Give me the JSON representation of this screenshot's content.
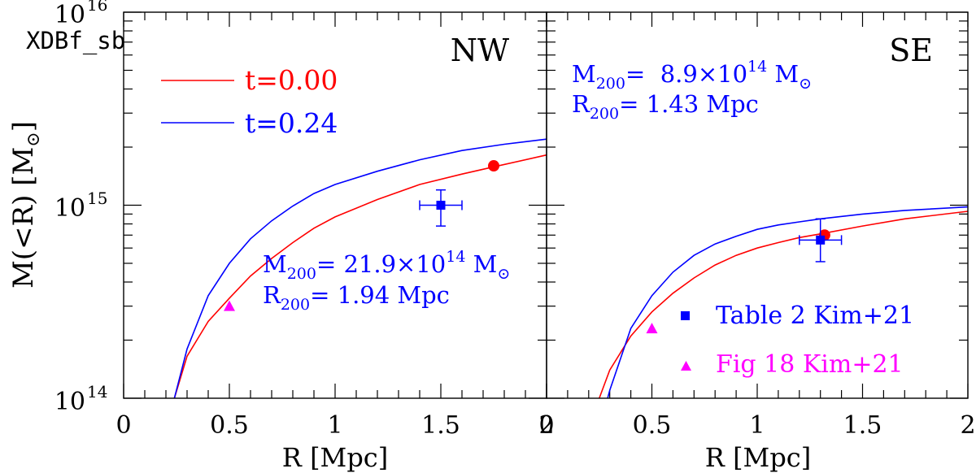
{
  "chart_data": {
    "type": "line",
    "ylabel_main": "M(<R) [M",
    "ylabel_sub": "⊙",
    "ylabel_close": "]",
    "xlabel": "R [Mpc]",
    "ylim": [
      100000000000000.0,
      1e+16
    ],
    "yscale": "log",
    "y_ticks": [
      {
        "base": "10",
        "exp": "16",
        "value": 1e+16
      },
      {
        "base": "10",
        "exp": "15",
        "value": 1000000000000000.0
      },
      {
        "base": "10",
        "exp": "14",
        "value": 100000000000000.0
      }
    ],
    "series_colors": {
      "t000": "#ff0000",
      "t024": "#0000ff",
      "table": "#0000ff",
      "fig": "#ff00ff"
    },
    "legend": {
      "model": "XDBf_sb",
      "t0_label": "t=0.00",
      "t1_label": "t=0.24",
      "table_label": "Table 2 Kim+21",
      "fig_label": "Fig 18 Kim+21"
    },
    "panels": [
      {
        "id": "NW",
        "title": "NW",
        "xlim": [
          0,
          2
        ],
        "x_ticks": [
          "0",
          "0.5",
          "1",
          "1.5",
          "2"
        ],
        "m200_prefix": "M",
        "m200_sub": "200",
        "m200_value": "= 21.9×10",
        "m200_exp": "14",
        "m200_unit": " M",
        "m200_unit_sub": "⊙",
        "r200_prefix": "R",
        "r200_sub": "200",
        "r200_value": "= 1.94 Mpc",
        "series": [
          {
            "name": "t=0.00",
            "key": "t000",
            "x": [
              0.24,
              0.3,
              0.4,
              0.5,
              0.6,
              0.7,
              0.8,
              0.9,
              1.0,
              1.2,
              1.4,
              1.6,
              1.75,
              2.0
            ],
            "y": [
              100000000000000.0,
              165000000000000.0,
              250000000000000.0,
              330000000000000.0,
              430000000000000.0,
              530000000000000.0,
              640000000000000.0,
              760000000000000.0,
              870000000000000.0,
              1070000000000000.0,
              1280000000000000.0,
              1450000000000000.0,
              1580000000000000.0,
              1820000000000000.0
            ]
          },
          {
            "name": "t=0.24",
            "key": "t024",
            "x": [
              0.24,
              0.3,
              0.4,
              0.5,
              0.6,
              0.7,
              0.8,
              0.9,
              1.0,
              1.2,
              1.4,
              1.6,
              1.8,
              2.0
            ],
            "y": [
              100000000000000.0,
              180000000000000.0,
              340000000000000.0,
              500000000000000.0,
              670000000000000.0,
              830000000000000.0,
              990000000000000.0,
              1150000000000000.0,
              1280000000000000.0,
              1500000000000000.0,
              1720000000000000.0,
              1920000000000000.0,
              2070000000000000.0,
              2200000000000000.0
            ]
          }
        ],
        "red_point": {
          "x": 1.75,
          "y": 1600000000000000.0
        },
        "table_point": {
          "x": 1.5,
          "y": 1000000000000000.0,
          "xerr": 0.1,
          "yerr_lo": 780000000000000.0,
          "yerr_hi": 1200000000000000.0
        },
        "fig_point": {
          "x": 0.5,
          "y": 300000000000000.0
        }
      },
      {
        "id": "SE",
        "title": "SE",
        "xlim": [
          0,
          2
        ],
        "x_ticks": [
          "0",
          "0.5",
          "1",
          "1.5",
          "2"
        ],
        "m200_prefix": "M",
        "m200_sub": "200",
        "m200_value": "=  8.9×10",
        "m200_exp": "14",
        "m200_unit": " M",
        "m200_unit_sub": "⊙",
        "r200_prefix": "R",
        "r200_sub": "200",
        "r200_value": "= 1.43 Mpc",
        "series": [
          {
            "name": "t=0.00",
            "key": "t000",
            "x": [
              0.25,
              0.3,
              0.4,
              0.5,
              0.6,
              0.7,
              0.8,
              0.9,
              1.0,
              1.1,
              1.2,
              1.3,
              1.5,
              1.7,
              2.0
            ],
            "y": [
              100000000000000.0,
              140000000000000.0,
              210000000000000.0,
              280000000000000.0,
              350000000000000.0,
              420000000000000.0,
              490000000000000.0,
              550000000000000.0,
              600000000000000.0,
              640000000000000.0,
              680000000000000.0,
              710000000000000.0,
              780000000000000.0,
              850000000000000.0,
              930000000000000.0
            ]
          },
          {
            "name": "t=0.24",
            "key": "t024",
            "x": [
              0.29,
              0.3,
              0.4,
              0.5,
              0.6,
              0.7,
              0.8,
              0.9,
              1.0,
              1.1,
              1.2,
              1.3,
              1.5,
              1.7,
              2.0
            ],
            "y": [
              100000000000000.0,
              110000000000000.0,
              230000000000000.0,
              340000000000000.0,
              450000000000000.0,
              550000000000000.0,
              630000000000000.0,
              690000000000000.0,
              750000000000000.0,
              790000000000000.0,
              820000000000000.0,
              850000000000000.0,
              900000000000000.0,
              940000000000000.0,
              980000000000000.0
            ]
          }
        ],
        "red_point": {
          "x": 1.32,
          "y": 700000000000000.0
        },
        "table_point": {
          "x": 1.3,
          "y": 660000000000000.0,
          "xerr": 0.1,
          "yerr_lo": 510000000000000.0,
          "yerr_hi": 850000000000000.0
        },
        "fig_point": {
          "x": 0.5,
          "y": 230000000000000.0
        }
      }
    ]
  }
}
